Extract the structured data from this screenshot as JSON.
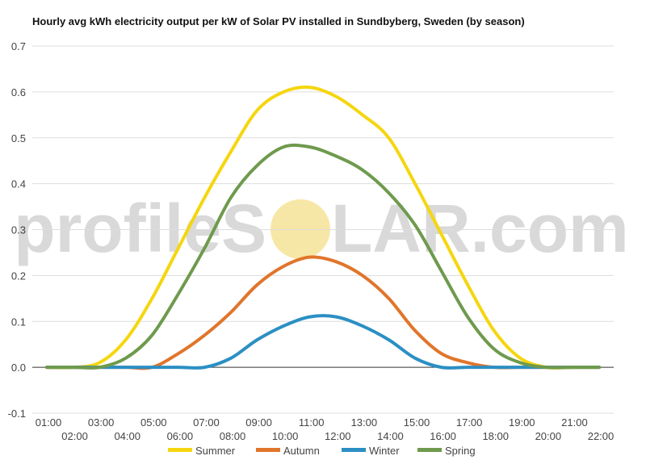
{
  "title": "Hourly avg kWh electricity output per kW of Solar PV installed in Sundbyberg, Sweden (by season)",
  "watermark": {
    "part1": "profileS",
    "part2": "LAR.com",
    "sun_color": "#f7e7a6"
  },
  "chart_data": {
    "type": "line",
    "title": "Hourly avg kWh electricity output per kW of Solar PV installed in Sundbyberg, Sweden (by season)",
    "xlabel": "",
    "ylabel": "",
    "ylim": [
      -0.1,
      0.7
    ],
    "yticks": [
      "-0.1",
      "0.0",
      "0.1",
      "0.2",
      "0.3",
      "0.4",
      "0.5",
      "0.6",
      "0.7"
    ],
    "categories": [
      "01:00",
      "02:00",
      "03:00",
      "04:00",
      "05:00",
      "06:00",
      "07:00",
      "08:00",
      "09:00",
      "10:00",
      "11:00",
      "12:00",
      "13:00",
      "14:00",
      "15:00",
      "16:00",
      "17:00",
      "18:00",
      "19:00",
      "20:00",
      "21:00",
      "22:00"
    ],
    "grid": true,
    "legend": "bottom",
    "series": [
      {
        "name": "Summer",
        "color": "#f5d60f",
        "values": [
          0,
          0,
          0.01,
          0.06,
          0.15,
          0.26,
          0.37,
          0.47,
          0.56,
          0.6,
          0.61,
          0.59,
          0.55,
          0.5,
          0.4,
          0.29,
          0.18,
          0.08,
          0.02,
          0,
          0,
          0
        ]
      },
      {
        "name": "Autumn",
        "color": "#e0752b",
        "values": [
          0,
          0,
          0,
          0,
          0,
          0.03,
          0.07,
          0.12,
          0.18,
          0.22,
          0.24,
          0.23,
          0.2,
          0.15,
          0.08,
          0.03,
          0.01,
          0,
          0,
          0,
          0,
          0
        ]
      },
      {
        "name": "Winter",
        "color": "#2b8fc4",
        "values": [
          0,
          0,
          0,
          0,
          0,
          0,
          0,
          0.02,
          0.06,
          0.09,
          0.11,
          0.11,
          0.09,
          0.06,
          0.02,
          0,
          0,
          0,
          0,
          0,
          0,
          0
        ]
      },
      {
        "name": "Spring",
        "color": "#6e9a4d",
        "values": [
          0,
          0,
          0,
          0.02,
          0.07,
          0.16,
          0.26,
          0.37,
          0.44,
          0.48,
          0.48,
          0.46,
          0.43,
          0.38,
          0.31,
          0.21,
          0.11,
          0.04,
          0.01,
          0,
          0,
          0
        ]
      }
    ]
  }
}
